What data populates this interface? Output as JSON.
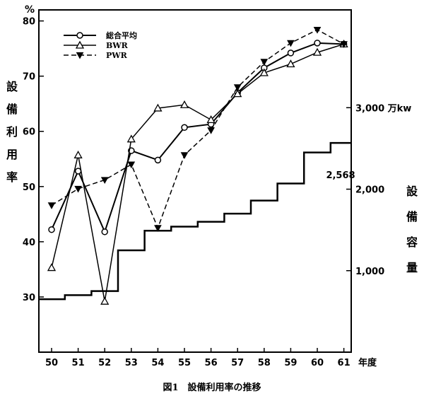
{
  "chart_data": {
    "type": "line",
    "caption": "図1　設備利用率の推移",
    "x_unit": "年度",
    "y_unit": "%",
    "ylabel": "設備利用率",
    "y2label": "設備容量",
    "x": [
      "50",
      "51",
      "52",
      "53",
      "54",
      "55",
      "56",
      "57",
      "58",
      "59",
      "60",
      "61"
    ],
    "ylim": [
      20,
      82
    ],
    "yticks": [
      "30",
      "40",
      "50",
      "60",
      "70",
      "80"
    ],
    "series": [
      {
        "name": "総合平均",
        "style": "solid-circle",
        "values": [
          42.2,
          52.8,
          41.8,
          56.5,
          54.8,
          60.7,
          61.3,
          67.0,
          71.5,
          74.2,
          76.0,
          75.8
        ]
      },
      {
        "name": "BWR",
        "style": "solid-triangle",
        "values": [
          35.3,
          55.7,
          29.2,
          58.6,
          64.2,
          64.8,
          62.1,
          66.8,
          70.6,
          72.2,
          74.3,
          75.8
        ]
      },
      {
        "name": "PWR",
        "style": "dashed-triangle-down",
        "values": [
          46.6,
          49.6,
          51.2,
          54.0,
          42.5,
          55.7,
          60.2,
          68.0,
          72.6,
          76.0,
          78.4,
          75.8
        ]
      }
    ],
    "capacity": {
      "unit": "万kw",
      "y2lim": [
        0,
        4200
      ],
      "y2ticks": [
        "1,000",
        "2,000",
        "3,000 万kw"
      ],
      "values": [
        650,
        700,
        750,
        1250,
        1490,
        1540,
        1600,
        1700,
        1860,
        2070,
        2450,
        2568
      ],
      "end_label": "2,568"
    },
    "colors": {
      "line": "#000000",
      "background": "#ffffff"
    }
  }
}
